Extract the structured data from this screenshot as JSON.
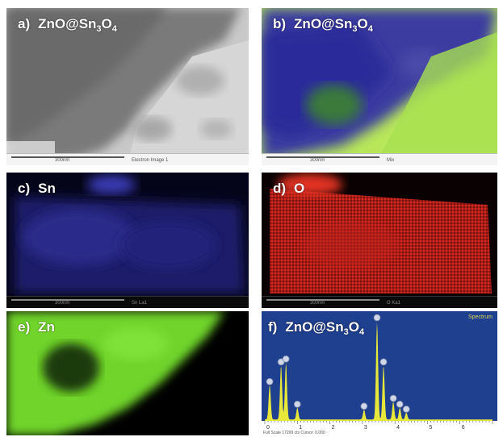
{
  "panels": {
    "a": {
      "letter": "a)",
      "label_main": "ZnO@Sn",
      "sub1": "3",
      "label_mid": "O",
      "sub2": "4",
      "scale": "300nm",
      "caption": "Electron Image 1"
    },
    "b": {
      "letter": "b)",
      "label_main": "ZnO@Sn",
      "sub1": "3",
      "label_mid": "O",
      "sub2": "4",
      "scale": "300nm",
      "caption": "Mix"
    },
    "c": {
      "letter": "c)",
      "label": "Sn",
      "scale": "300nm",
      "caption": "Sn La1"
    },
    "d": {
      "letter": "d)",
      "label": "O",
      "scale": "300nm",
      "caption": "O Ka1"
    },
    "e": {
      "letter": "e)",
      "label": "Zn"
    },
    "f": {
      "letter": "f)",
      "label_main": "ZnO@Sn",
      "sub1": "3",
      "label_mid": "O",
      "sub2": "4",
      "title": "Spectrum",
      "footer": "Full Scale 17299 cts Cursor: 0.000"
    }
  },
  "colors": {
    "tem_gray": "#8a8a8a",
    "sn_blue": "#24248a",
    "o_red": "#c8261e",
    "zn_green": "#6fd42a",
    "spectrum_bg": "#1f3f8f",
    "spectrum_fill": "#e8e83a"
  },
  "chart_data": {
    "type": "area",
    "xlim": [
      0,
      7
    ],
    "xticks": [
      "0",
      "1",
      "2",
      "3",
      "4",
      "5",
      "6"
    ],
    "peaks": [
      {
        "x": 0.15,
        "y": 0.35
      },
      {
        "x": 0.5,
        "y": 0.55
      },
      {
        "x": 0.65,
        "y": 0.58
      },
      {
        "x": 1.0,
        "y": 0.12
      },
      {
        "x": 3.05,
        "y": 0.1
      },
      {
        "x": 3.45,
        "y": 1.0
      },
      {
        "x": 3.65,
        "y": 0.55
      },
      {
        "x": 3.95,
        "y": 0.18
      },
      {
        "x": 4.15,
        "y": 0.12
      },
      {
        "x": 4.35,
        "y": 0.07
      }
    ]
  }
}
